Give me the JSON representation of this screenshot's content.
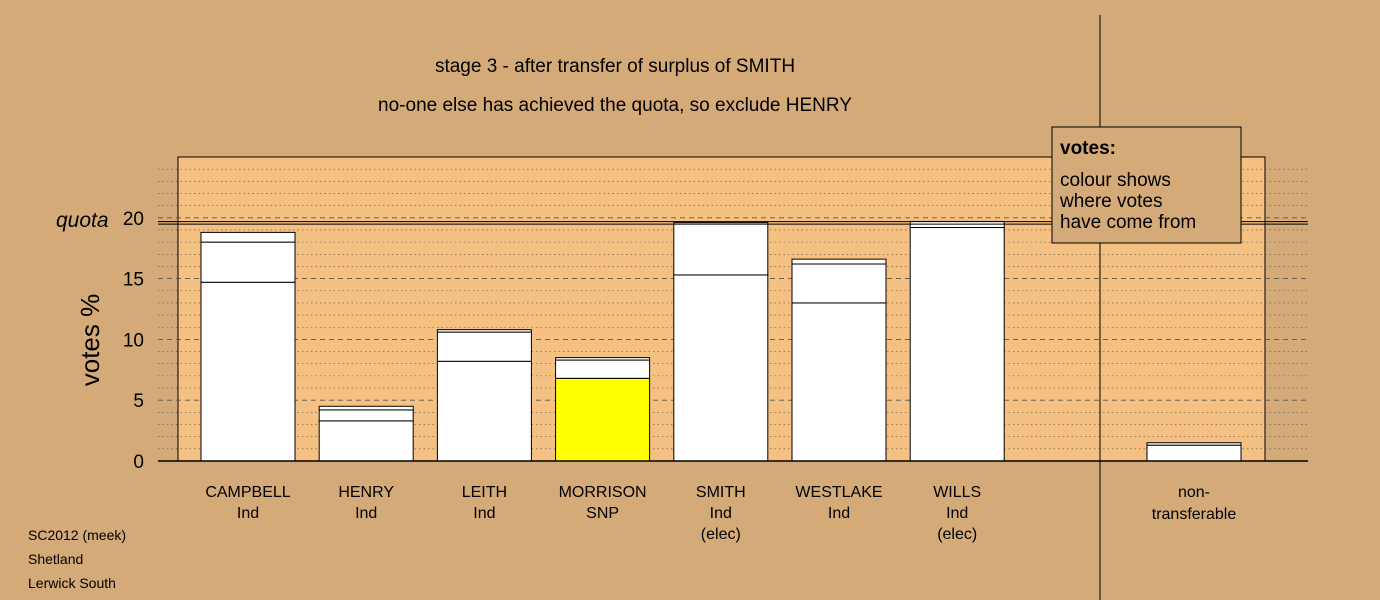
{
  "chart_data": {
    "type": "bar",
    "stacked": true,
    "title": "stage 3 - after transfer of surplus of SMITH",
    "subtitle": "no-one else has achieved the quota, so exclude HENRY",
    "ylabel": "votes %",
    "ylim": [
      0,
      25
    ],
    "yticks": [
      "0",
      "5",
      "10",
      "15",
      "20"
    ],
    "quota_label": "quota",
    "quota": 19.6,
    "grid": true,
    "colors": {
      "background": "#d4aa78",
      "plot_fill": "#f5c182",
      "bar": "#ffffff",
      "highlight": "#ffff00"
    },
    "categories": [
      {
        "name": "CAMPBELL",
        "party": "Ind",
        "note": "",
        "segments": [
          14.7,
          3.3,
          0.8
        ],
        "highlight": false
      },
      {
        "name": "HENRY",
        "party": "Ind",
        "note": "",
        "segments": [
          3.3,
          0.9,
          0.3
        ],
        "highlight": false
      },
      {
        "name": "LEITH",
        "party": "Ind",
        "note": "",
        "segments": [
          8.2,
          2.4,
          0.2
        ],
        "highlight": false
      },
      {
        "name": "MORRISON",
        "party": "SNP",
        "note": "",
        "segments": [
          6.8,
          1.5,
          0.2
        ],
        "highlight": true
      },
      {
        "name": "SMITH",
        "party": "Ind",
        "note": "(elec)",
        "segments": [
          15.3,
          4.3
        ],
        "highlight": false
      },
      {
        "name": "WESTLAKE",
        "party": "Ind",
        "note": "",
        "segments": [
          13.0,
          3.2,
          0.4
        ],
        "highlight": false
      },
      {
        "name": "WILLS",
        "party": "Ind",
        "note": "(elec)",
        "segments": [
          19.2,
          0.5
        ],
        "highlight": false
      }
    ],
    "nontransferable": {
      "label_line1": "non-",
      "label_line2": "transferable",
      "segments": [
        1.3,
        0.2
      ]
    },
    "legend": {
      "title": "votes:",
      "lines": [
        "colour shows",
        "where votes",
        "have come from"
      ],
      "position": "top-right"
    }
  },
  "footer": [
    "SC2012 (meek)",
    "Shetland",
    "Lerwick South"
  ]
}
